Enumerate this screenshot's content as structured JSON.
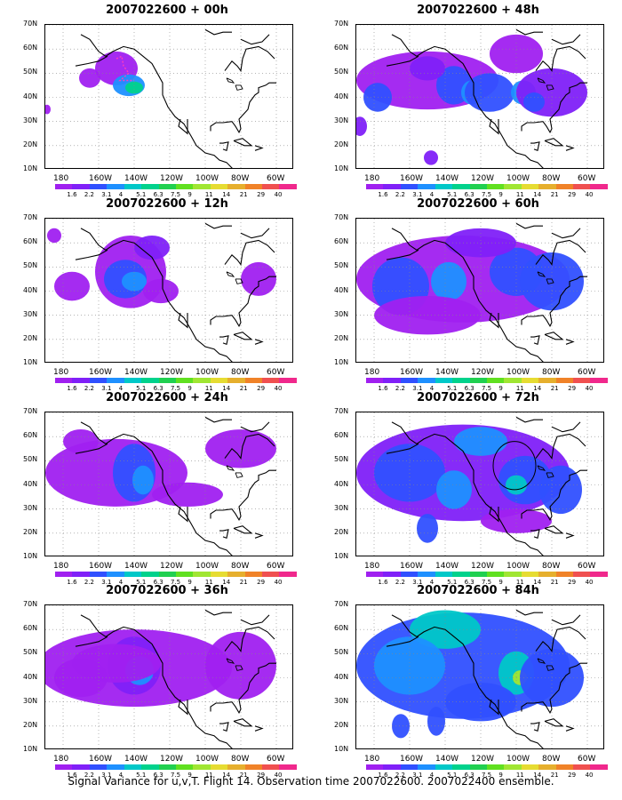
{
  "panels": [
    {
      "title": "2007022600 + 00h"
    },
    {
      "title": "2007022600 + 48h"
    },
    {
      "title": "2007022600 + 12h"
    },
    {
      "title": "2007022600 + 60h"
    },
    {
      "title": "2007022600 + 24h"
    },
    {
      "title": "2007022600 + 72h"
    },
    {
      "title": "2007022600 + 36h"
    },
    {
      "title": "2007022600 + 84h"
    }
  ],
  "lat_labels": [
    "70N",
    "60N",
    "50N",
    "40N",
    "30N",
    "20N",
    "10N"
  ],
  "lon_labels": [
    "180",
    "160W",
    "140W",
    "120W",
    "100W",
    "80W",
    "60W"
  ],
  "colorbar": {
    "levels": [
      "1.6",
      "2.2",
      "3.1",
      "4",
      "5.1",
      "6.3",
      "7.5",
      "9",
      "11",
      "14",
      "21",
      "29",
      "40"
    ],
    "colors": [
      "#a020f0",
      "#8020f8",
      "#3050ff",
      "#1e90ff",
      "#00c8c8",
      "#00d28c",
      "#20d050",
      "#60e020",
      "#a0e632",
      "#e6dc32",
      "#e6af2d",
      "#f08228",
      "#f05050",
      "#f0288c"
    ]
  },
  "caption": "Signal Variance for u,v,T. Flight 14. Observation time 2007022600. 2007022400 ensemble."
}
